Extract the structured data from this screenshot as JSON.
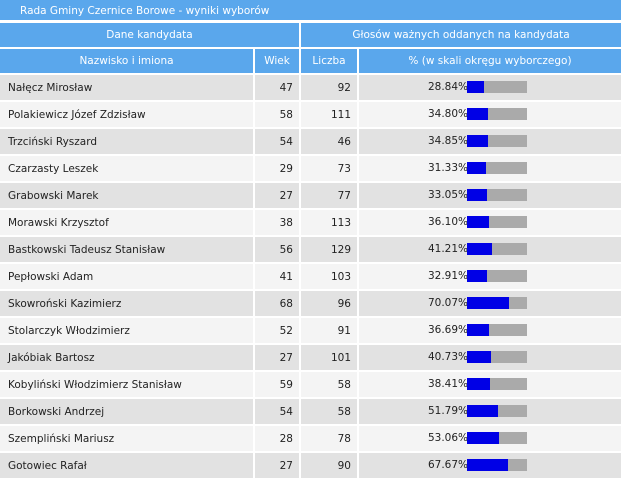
{
  "title": "Rada Gminy Czernice Borowe - wyniki wyborów",
  "headers": {
    "group_candidate": "Dane kandydata",
    "group_votes": "Głosów ważnych oddanych na kandydata",
    "name": "Nazwisko i imiona",
    "age": "Wiek",
    "count": "Liczba",
    "percent": "% (w skali okręgu wyborczego)"
  },
  "colors": {
    "header_bg": "#5aa7ec",
    "bar_fill": "#0000e6",
    "bar_bg": "#aaaaaa",
    "row_odd": "#e2e2e2",
    "row_even": "#f4f4f4"
  },
  "rows": [
    {
      "name": "Nałęcz Mirosław",
      "age": "47",
      "count": "92",
      "percent": "28.84%",
      "share": 0.2884
    },
    {
      "name": "Polakiewicz Józef Zdzisław",
      "age": "58",
      "count": "111",
      "percent": "34.80%",
      "share": 0.348
    },
    {
      "name": "Trzciński Ryszard",
      "age": "54",
      "count": "46",
      "percent": "34.85%",
      "share": 0.3485
    },
    {
      "name": "Czarzasty Leszek",
      "age": "29",
      "count": "73",
      "percent": "31.33%",
      "share": 0.3133
    },
    {
      "name": "Grabowski Marek",
      "age": "27",
      "count": "77",
      "percent": "33.05%",
      "share": 0.3305
    },
    {
      "name": "Morawski Krzysztof",
      "age": "38",
      "count": "113",
      "percent": "36.10%",
      "share": 0.361
    },
    {
      "name": "Bastkowski Tadeusz Stanisław",
      "age": "56",
      "count": "129",
      "percent": "41.21%",
      "share": 0.4121
    },
    {
      "name": "Pepłowski Adam",
      "age": "41",
      "count": "103",
      "percent": "32.91%",
      "share": 0.3291
    },
    {
      "name": "Skowroński Kazimierz",
      "age": "68",
      "count": "96",
      "percent": "70.07%",
      "share": 0.7007
    },
    {
      "name": "Stolarczyk Włodzimierz",
      "age": "52",
      "count": "91",
      "percent": "36.69%",
      "share": 0.3669
    },
    {
      "name": "Jakóbiak Bartosz",
      "age": "27",
      "count": "101",
      "percent": "40.73%",
      "share": 0.4073
    },
    {
      "name": "Kobyliński Włodzimierz Stanisław",
      "age": "59",
      "count": "58",
      "percent": "38.41%",
      "share": 0.3841
    },
    {
      "name": "Borkowski Andrzej",
      "age": "54",
      "count": "58",
      "percent": "51.79%",
      "share": 0.5179
    },
    {
      "name": "Szempliński Mariusz",
      "age": "28",
      "count": "78",
      "percent": "53.06%",
      "share": 0.5306
    },
    {
      "name": "Gotowiec Rafał",
      "age": "27",
      "count": "90",
      "percent": "67.67%",
      "share": 0.6767
    }
  ]
}
